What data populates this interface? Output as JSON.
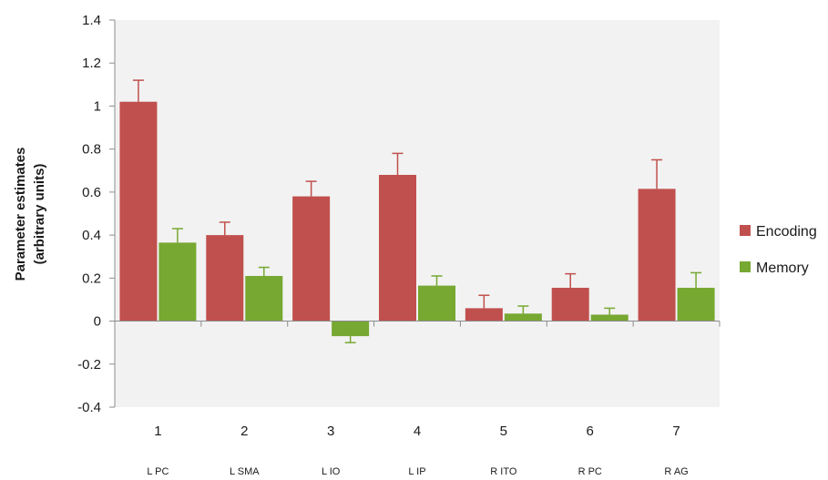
{
  "chart_data": {
    "type": "bar",
    "categories": [
      "1",
      "2",
      "3",
      "4",
      "5",
      "6",
      "7"
    ],
    "category_sublabels": [
      "L PC",
      "L SMA",
      "L IO",
      "L IP",
      "R ITO",
      "R PC",
      "R AG"
    ],
    "series": [
      {
        "name": "Encoding",
        "color": "#c0504d",
        "values": [
          1.02,
          0.4,
          0.58,
          0.68,
          0.06,
          0.155,
          0.615
        ],
        "errors": [
          0.1,
          0.06,
          0.07,
          0.1,
          0.06,
          0.065,
          0.135
        ]
      },
      {
        "name": "Memory",
        "color": "#77a832",
        "values": [
          0.365,
          0.21,
          -0.07,
          0.165,
          0.035,
          0.03,
          0.155
        ],
        "errors": [
          0.065,
          0.04,
          0.03,
          0.045,
          0.035,
          0.03,
          0.07
        ]
      }
    ],
    "ylabel_lines": [
      "Parameter estimates",
      "(arbitrary units)"
    ],
    "xlabel": "",
    "ylim": [
      -0.4,
      1.4
    ],
    "yticks": [
      "-0.4",
      "-0.2",
      "0",
      "0.2",
      "0.4",
      "0.6",
      "0.8",
      "1",
      "1.2",
      "1.4"
    ],
    "grid": false,
    "legend_position": "right",
    "plot_background": "#f2f2f2",
    "axis_color": "#8c8c8c",
    "text_color": "#1a1a1a"
  }
}
